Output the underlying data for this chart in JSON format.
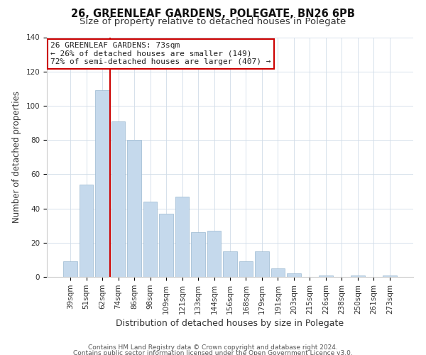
{
  "title": "26, GREENLEAF GARDENS, POLEGATE, BN26 6PB",
  "subtitle": "Size of property relative to detached houses in Polegate",
  "xlabel": "Distribution of detached houses by size in Polegate",
  "ylabel": "Number of detached properties",
  "bar_labels": [
    "39sqm",
    "51sqm",
    "62sqm",
    "74sqm",
    "86sqm",
    "98sqm",
    "109sqm",
    "121sqm",
    "133sqm",
    "144sqm",
    "156sqm",
    "168sqm",
    "179sqm",
    "191sqm",
    "203sqm",
    "215sqm",
    "226sqm",
    "238sqm",
    "250sqm",
    "261sqm",
    "273sqm"
  ],
  "bar_values": [
    9,
    54,
    109,
    91,
    80,
    44,
    37,
    47,
    26,
    27,
    15,
    9,
    15,
    5,
    2,
    0,
    1,
    0,
    1,
    0,
    1
  ],
  "bar_color": "#c5d9ec",
  "bar_edgecolor": "#9ab8d0",
  "vline_x_index": 2.5,
  "vline_color": "#cc0000",
  "annotation_title": "26 GREENLEAF GARDENS: 73sqm",
  "annotation_line1": "← 26% of detached houses are smaller (149)",
  "annotation_line2": "72% of semi-detached houses are larger (407) →",
  "annotation_box_facecolor": "#ffffff",
  "annotation_box_edgecolor": "#cc0000",
  "ylim": [
    0,
    140
  ],
  "yticks": [
    0,
    20,
    40,
    60,
    80,
    100,
    120,
    140
  ],
  "footer1": "Contains HM Land Registry data © Crown copyright and database right 2024.",
  "footer2": "Contains public sector information licensed under the Open Government Licence v3.0.",
  "title_fontsize": 10.5,
  "subtitle_fontsize": 9.5,
  "xlabel_fontsize": 9,
  "ylabel_fontsize": 8.5,
  "tick_fontsize": 7.5,
  "annotation_fontsize": 8,
  "footer_fontsize": 6.5
}
